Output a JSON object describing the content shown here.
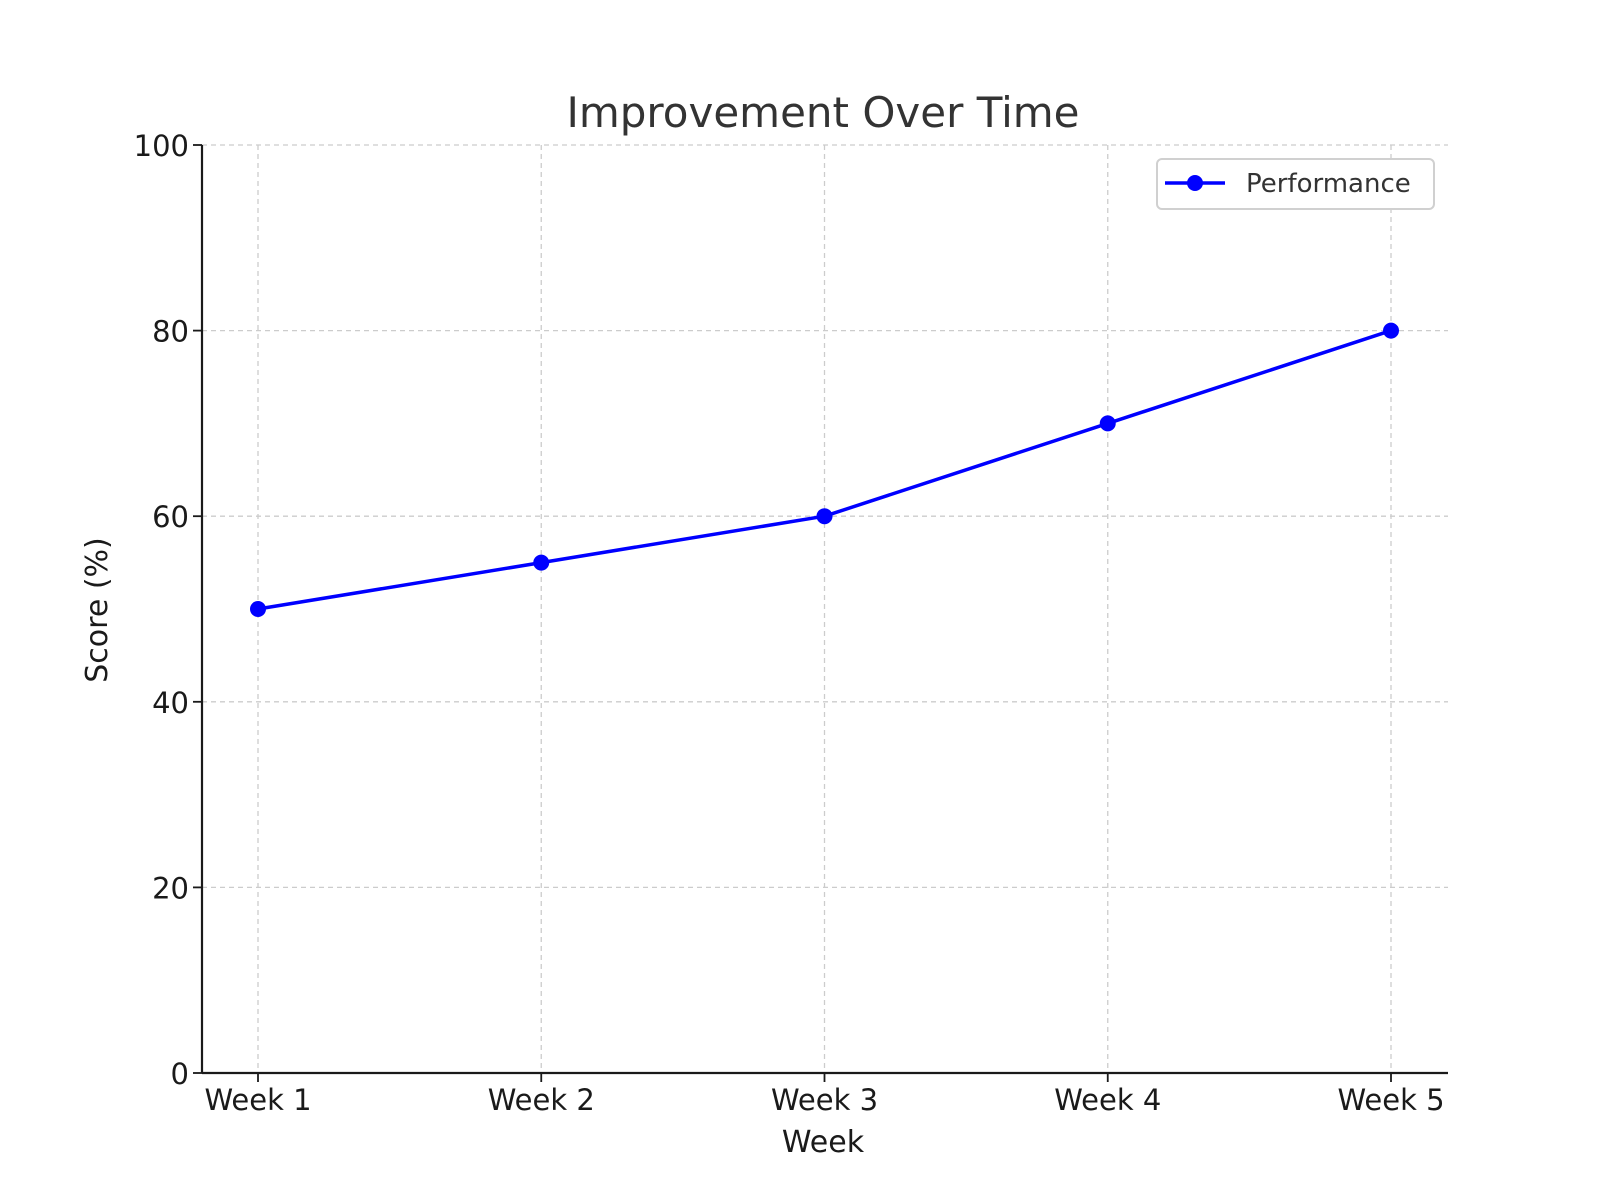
{
  "chart_data": {
    "type": "line",
    "title": "Improvement Over Time",
    "xlabel": "Week",
    "ylabel": "Score (%)",
    "categories": [
      "Week 1",
      "Week 2",
      "Week 3",
      "Week 4",
      "Week 5"
    ],
    "series": [
      {
        "name": "Performance",
        "values": [
          50,
          55,
          60,
          70,
          80
        ],
        "color": "#0000ff",
        "marker": "circle"
      }
    ],
    "ylim": [
      0,
      100
    ],
    "yticks": [
      0,
      20,
      40,
      60,
      80,
      100
    ],
    "grid": true,
    "grid_style": "dashed",
    "legend_position": "top-right"
  }
}
